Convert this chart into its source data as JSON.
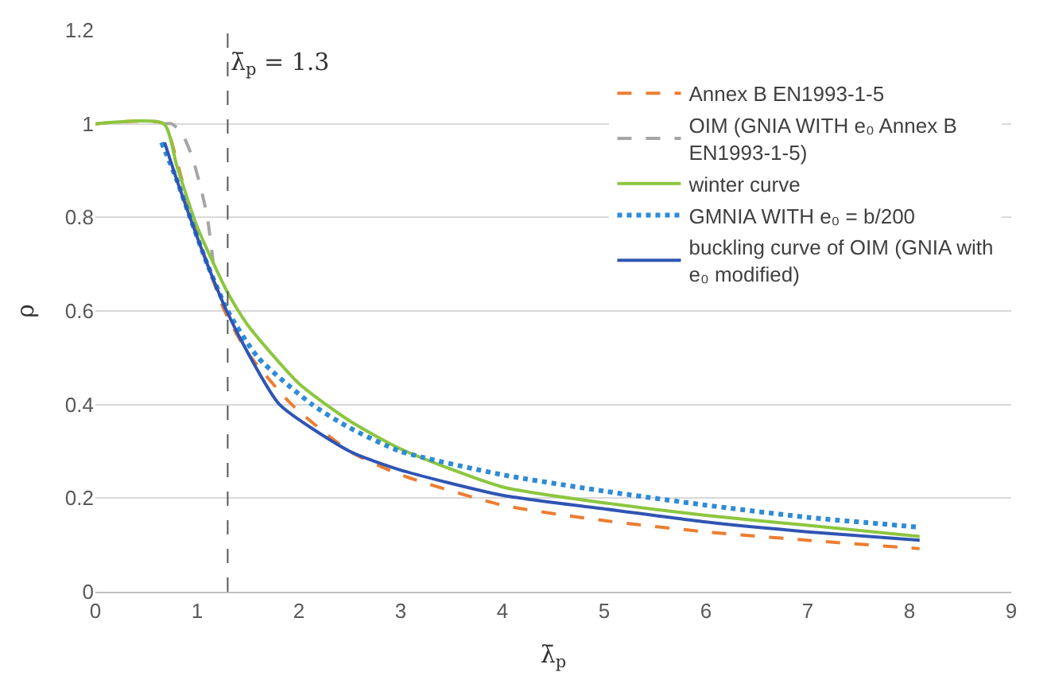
{
  "chart_data": {
    "type": "line",
    "xlabel": "λ̄$_{p}$",
    "ylabel": "ρ",
    "xlim": [
      0,
      9
    ],
    "xticks": [
      0,
      1,
      2,
      3,
      4,
      5,
      6,
      7,
      8,
      9
    ],
    "ylim": [
      0,
      1.2
    ],
    "yticks": [
      0,
      0.2,
      0.4,
      0.6,
      0.8,
      1,
      1.2
    ],
    "grid": "y",
    "legend": "top right",
    "marker": "none",
    "ref_lines": [
      {
        "axis": "x",
        "value": 1.3,
        "label": "λ̄$_{p}$ = 1.3",
        "color": "#595959",
        "line_style": "dashed"
      }
    ],
    "series": [
      {
        "name": "Annex B EN1993-1-5",
        "color": "#ed7d31",
        "line_style": "dashed",
        "x": [
          0,
          0.67,
          0.8,
          0.95,
          1.1,
          1.27,
          1.5,
          1.93,
          2.5,
          3,
          4,
          5,
          6,
          7,
          8.1
        ],
        "values": [
          1,
          1,
          0.92,
          0.8,
          0.7,
          0.6,
          0.51,
          0.4,
          0.3,
          0.25,
          0.185,
          0.152,
          0.128,
          0.11,
          0.092
        ]
      },
      {
        "name": "OIM (GNIA WITH e₀ Annex B EN1993-1-5)",
        "color": "#a5a5a5",
        "line_style": "dashed",
        "x": [
          0.67,
          0.75,
          0.85,
          0.95,
          1.05,
          1.1,
          1.16
        ],
        "values": [
          1,
          1,
          0.98,
          0.93,
          0.85,
          0.8,
          0.7
        ]
      },
      {
        "name": "winter curve",
        "color": "#8cc63f",
        "line_style": "solid",
        "x": [
          0,
          0.673,
          0.8,
          1,
          1.3,
          1.5,
          2,
          2.5,
          3,
          4,
          5,
          6,
          7,
          8.1
        ],
        "values": [
          1,
          1,
          0.91,
          0.78,
          0.639,
          0.569,
          0.445,
          0.365,
          0.305,
          0.224,
          0.19,
          0.163,
          0.142,
          0.118
        ]
      },
      {
        "name": "GMNIA WITH e₀ = b/200",
        "color": "#2e8bd8",
        "line_style": "dotted",
        "x": [
          0.65,
          0.8,
          0.93,
          1.1,
          1.3,
          1.6,
          2.13,
          2.5,
          3,
          4,
          5,
          6,
          7,
          8.1
        ],
        "values": [
          0.96,
          0.88,
          0.8,
          0.7,
          0.6,
          0.5,
          0.4,
          0.35,
          0.3,
          0.25,
          0.215,
          0.185,
          0.159,
          0.138
        ]
      },
      {
        "name": "buckling curve of OIM (GNIA with e₀ modified)",
        "color": "#2f55b4",
        "line_style": "solid",
        "x": [
          0.68,
          0.8,
          0.93,
          1.1,
          1.29,
          1.5,
          1.81,
          2.5,
          3,
          4,
          5,
          6,
          7,
          8.1
        ],
        "values": [
          0.96,
          0.88,
          0.8,
          0.7,
          0.6,
          0.51,
          0.4,
          0.3,
          0.26,
          0.206,
          0.177,
          0.149,
          0.128,
          0.11
        ]
      }
    ]
  }
}
